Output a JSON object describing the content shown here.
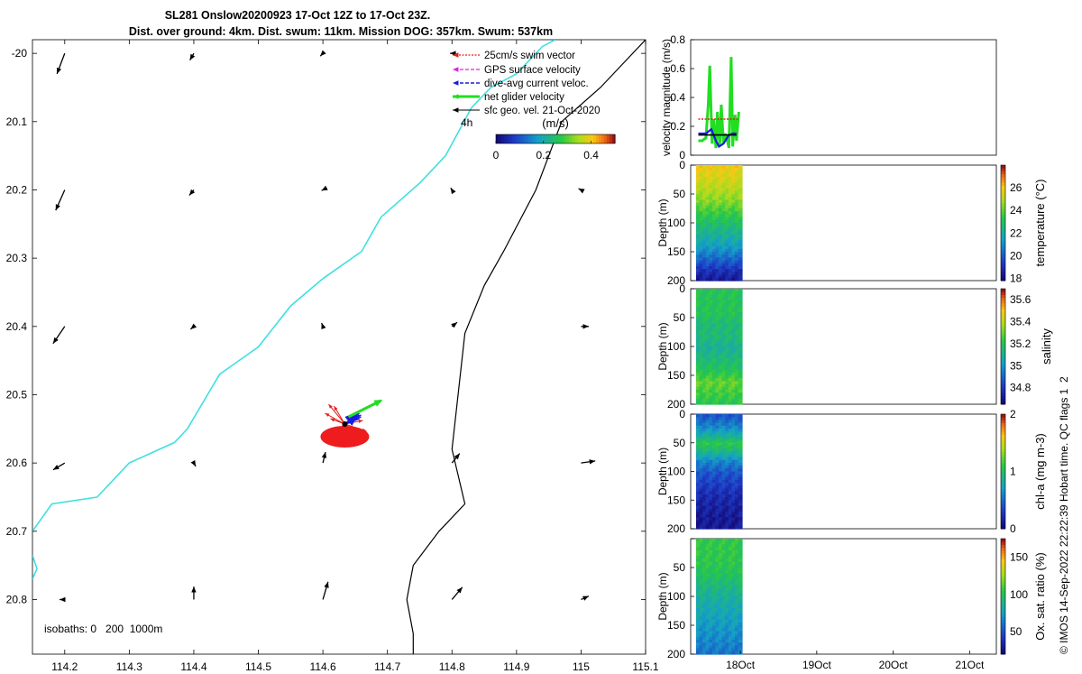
{
  "title": {
    "line1": "SL281 Onslow20200923 17-Oct 12Z to 17-Oct 23Z.",
    "line2": "Dist. over ground: 4km. Dist. swum: 11km. Mission DOG: 357km. Swum: 537km"
  },
  "side_note": "© IMOS 14-Sep-2022 22:22:39 Hobart time. QC flags 1  2",
  "chart_data": [
    {
      "type": "map",
      "name": "trajectory map",
      "xlim": [
        114.15,
        115.1
      ],
      "ylim": [
        -20.88,
        -19.98
      ],
      "xticks": [
        114.2,
        114.3,
        114.4,
        114.5,
        114.6,
        114.7,
        114.8,
        114.9,
        115,
        115.1
      ],
      "xtick_labels": [
        "114.2",
        "114.3",
        "114.4",
        "114.5",
        "114.6",
        "114.7",
        "114.8",
        "114.9",
        "115",
        "115.1"
      ],
      "yticks": [
        -20,
        -20.1,
        -20.2,
        -20.3,
        -20.4,
        -20.5,
        -20.6,
        -20.7,
        -20.8
      ],
      "ytick_labels": [
        "-20",
        "20.1",
        "20.2",
        "20.3",
        "20.4",
        "20.5",
        "20.6",
        "20.7",
        "20.8"
      ],
      "legend": [
        {
          "label": "25cm/s swim vector",
          "color": "#e0201b",
          "style": "dotted-arrow"
        },
        {
          "label": "GPS surface velocity",
          "color": "#e020e0",
          "style": "dashed-arrow"
        },
        {
          "label": "dive-avg current veloc.",
          "color": "#1a1ae0",
          "style": "dashed-arrow"
        },
        {
          "label": "net glider velocity",
          "color": "#22dd22",
          "style": "thick-arrow"
        },
        {
          "label": "sfc geo. vel. 21-Oct-2020",
          "color": "#000000",
          "style": "arrow"
        }
      ],
      "legend_time_label": "4h",
      "colorbar": {
        "label": "(m/s)",
        "min": 0,
        "max": 0.5,
        "ticks": [
          0,
          0.2,
          0.4
        ],
        "tick_labels": [
          "0",
          "0.2",
          "0.4"
        ]
      },
      "isobath_label": "isobaths: 0   200  1000m",
      "isobath_200m": [
        [
          115.1,
          -19.98
        ],
        [
          115.03,
          -20.05
        ],
        [
          114.97,
          -20.1
        ],
        [
          114.93,
          -20.2
        ],
        [
          114.88,
          -20.29
        ],
        [
          114.85,
          -20.34
        ],
        [
          114.82,
          -20.41
        ],
        [
          114.8,
          -20.58
        ],
        [
          114.82,
          -20.66
        ],
        [
          114.78,
          -20.7
        ],
        [
          114.74,
          -20.75
        ],
        [
          114.73,
          -20.8
        ],
        [
          114.74,
          -20.85
        ],
        [
          114.74,
          -20.88
        ]
      ],
      "isobath_0m": [
        [
          114.15,
          -20.7
        ],
        [
          114.18,
          -20.66
        ],
        [
          114.25,
          -20.65
        ],
        [
          114.3,
          -20.6
        ],
        [
          114.37,
          -20.57
        ],
        [
          114.39,
          -20.55
        ],
        [
          114.44,
          -20.47
        ],
        [
          114.5,
          -20.43
        ],
        [
          114.55,
          -20.37
        ],
        [
          114.6,
          -20.33
        ],
        [
          114.66,
          -20.29
        ],
        [
          114.69,
          -20.24
        ],
        [
          114.75,
          -20.19
        ],
        [
          114.79,
          -20.15
        ],
        [
          114.83,
          -20.08
        ],
        [
          114.86,
          -20.05
        ],
        [
          114.9,
          -20.03
        ],
        [
          114.94,
          -19.99
        ],
        [
          114.96,
          -19.98
        ]
      ],
      "isobath_0m_b": [
        [
          114.15,
          -20.735
        ],
        [
          114.157,
          -20.755
        ],
        [
          114.15,
          -20.77
        ]
      ],
      "current_vectors": [
        [
          114.2,
          -20,
          -0.012,
          -0.03
        ],
        [
          114.4,
          -20,
          -0.006,
          -0.01
        ],
        [
          114.6,
          -20,
          -0.004,
          -0.004
        ],
        [
          114.8,
          -20,
          -0.003,
          0
        ],
        [
          114.2,
          -20.2,
          -0.014,
          -0.03
        ],
        [
          114.4,
          -20.2,
          -0.007,
          -0.008
        ],
        [
          114.6,
          -20.2,
          -0.002,
          -0.001
        ],
        [
          114.8,
          -20.2,
          -0.002,
          0.003
        ],
        [
          115,
          -20.2,
          -0.004,
          0.002
        ],
        [
          114.2,
          -20.4,
          -0.018,
          -0.025
        ],
        [
          114.4,
          -20.4,
          -0.005,
          -0.004
        ],
        [
          114.6,
          -20.4,
          -0.002,
          0.005
        ],
        [
          114.8,
          -20.4,
          0.008,
          0.006
        ],
        [
          115,
          -20.4,
          0.012,
          0
        ],
        [
          114.2,
          -20.6,
          -0.018,
          -0.01
        ],
        [
          114.4,
          -20.6,
          0.003,
          -0.005
        ],
        [
          114.6,
          -20.6,
          0.004,
          0.016
        ],
        [
          114.8,
          -20.6,
          0.012,
          0.014
        ],
        [
          115,
          -20.6,
          0.022,
          0.003
        ],
        [
          114.2,
          -20.8,
          -0.008,
          0
        ],
        [
          114.4,
          -20.8,
          0,
          0.019
        ],
        [
          114.6,
          -20.8,
          0.008,
          0.026
        ],
        [
          114.8,
          -20.8,
          0.016,
          0.018
        ],
        [
          115,
          -20.8,
          0.012,
          0.005
        ]
      ],
      "glider_position": [
        114.634,
        -20.543
      ]
    },
    {
      "type": "line",
      "name": "velocity magnitude",
      "ylabel": "velocity magnitude (m/s)",
      "ylim": [
        0,
        0.8
      ],
      "yticks": [
        0,
        0.2,
        0.4,
        0.6,
        0.8
      ],
      "ytick_labels": [
        "0",
        "0.2",
        "0.4",
        "0.6",
        "0.8"
      ],
      "xlim": [
        17.35,
        21.35
      ],
      "series": [
        {
          "color": "#22dd22",
          "x": [
            17.45,
            17.5,
            17.55,
            17.58,
            17.6,
            17.63,
            17.65,
            17.68,
            17.7,
            17.73,
            17.75,
            17.78,
            17.8,
            17.83,
            17.85,
            17.88,
            17.9,
            17.93,
            17.95,
            17.98
          ],
          "y": [
            0.1,
            0.1,
            0.12,
            0.35,
            0.62,
            0.08,
            0.25,
            0.05,
            0.3,
            0.06,
            0.35,
            0.08,
            0.15,
            0.1,
            0.05,
            0.68,
            0.06,
            0.28,
            0.1,
            0.3
          ]
        },
        {
          "color": "#1a1ae0",
          "x": [
            17.45,
            17.55,
            17.62,
            17.68,
            17.72,
            17.78,
            17.85,
            17.9,
            17.95
          ],
          "y": [
            0.15,
            0.15,
            0.18,
            0.1,
            0.06,
            0.08,
            0.14,
            0.15,
            0.15
          ]
        },
        {
          "color": "#000000",
          "x": [
            17.45,
            17.95
          ],
          "y": [
            0.14,
            0.14
          ]
        },
        {
          "color": "#e0201b",
          "style": "dotted",
          "x": [
            17.45,
            17.98
          ],
          "y": [
            0.25,
            0.25
          ]
        }
      ]
    },
    {
      "type": "heatmap",
      "name": "temperature section",
      "ylabel": "Depth (m)",
      "ylim_reversed": [
        0,
        200
      ],
      "yticks": [
        0,
        50,
        100,
        150,
        200
      ],
      "colorbar": {
        "label": "temperature (°C)",
        "min": 17.8,
        "max": 28,
        "ticks": [
          18,
          20,
          22,
          24,
          26
        ],
        "tick_labels": [
          "18",
          "20",
          "22",
          "24",
          "26"
        ]
      },
      "time_range": [
        17.45,
        18.0
      ],
      "profile_depth": [
        0,
        20,
        40,
        60,
        80,
        100,
        120,
        140,
        160,
        180,
        200
      ],
      "profile_value": [
        26,
        25.6,
        25.1,
        24.5,
        23.6,
        22.8,
        22.1,
        21.3,
        20.2,
        19.0,
        18.2
      ]
    },
    {
      "type": "heatmap",
      "name": "salinity section",
      "ylabel": "Depth (m)",
      "ylim_reversed": [
        0,
        200
      ],
      "yticks": [
        0,
        50,
        100,
        150,
        200
      ],
      "colorbar": {
        "label": "salinity",
        "min": 34.65,
        "max": 35.7,
        "ticks": [
          34.8,
          35,
          35.2,
          35.4,
          35.6
        ],
        "tick_labels": [
          "34.8",
          "35",
          "35.2",
          "35.4",
          "35.6"
        ]
      },
      "time_range": [
        17.45,
        18.0
      ],
      "profile_depth": [
        0,
        20,
        40,
        60,
        80,
        100,
        120,
        140,
        160,
        180,
        200
      ],
      "profile_value": [
        35.2,
        35.2,
        35.2,
        35.15,
        35.15,
        35.1,
        35.15,
        35.2,
        35.3,
        35.25,
        35.2
      ]
    },
    {
      "type": "heatmap",
      "name": "chlorophyll section",
      "ylabel": "Depth (m)",
      "ylim_reversed": [
        0,
        200
      ],
      "yticks": [
        0,
        50,
        100,
        150,
        200
      ],
      "colorbar": {
        "label": "chl-a (mg m-3)",
        "min": 0,
        "max": 2,
        "ticks": [
          0,
          1,
          2
        ],
        "tick_labels": [
          "0",
          "1",
          "2"
        ]
      },
      "time_range": [
        17.45,
        18.0
      ],
      "profile_depth": [
        0,
        20,
        40,
        50,
        60,
        80,
        100,
        120,
        140,
        160,
        180,
        200
      ],
      "profile_value": [
        0.4,
        0.6,
        0.9,
        1.1,
        0.95,
        0.6,
        0.4,
        0.3,
        0.2,
        0.15,
        0.1,
        0.1
      ]
    },
    {
      "type": "heatmap",
      "name": "oxygen section",
      "ylabel": "Depth (m)",
      "ylim_reversed": [
        0,
        200
      ],
      "yticks": [
        0,
        50,
        100,
        150,
        200
      ],
      "yticks_shown": [
        50,
        100,
        150,
        200
      ],
      "xlim": [
        17.35,
        21.35
      ],
      "xticks": [
        18,
        19,
        20,
        21
      ],
      "xtick_labels": [
        "18Oct",
        "19Oct",
        "20Oct",
        "21Oct"
      ],
      "colorbar": {
        "label": "Ox. sat. ratio (%)",
        "min": 20,
        "max": 175,
        "ticks": [
          50,
          100,
          150
        ],
        "tick_labels": [
          "50",
          "100",
          "150"
        ]
      },
      "time_range": [
        17.45,
        18.0
      ],
      "profile_depth": [
        0,
        20,
        40,
        60,
        80,
        100,
        120,
        140,
        160,
        180,
        200
      ],
      "profile_value": [
        105,
        105,
        104,
        100,
        92,
        85,
        80,
        75,
        70,
        65,
        60
      ]
    }
  ]
}
